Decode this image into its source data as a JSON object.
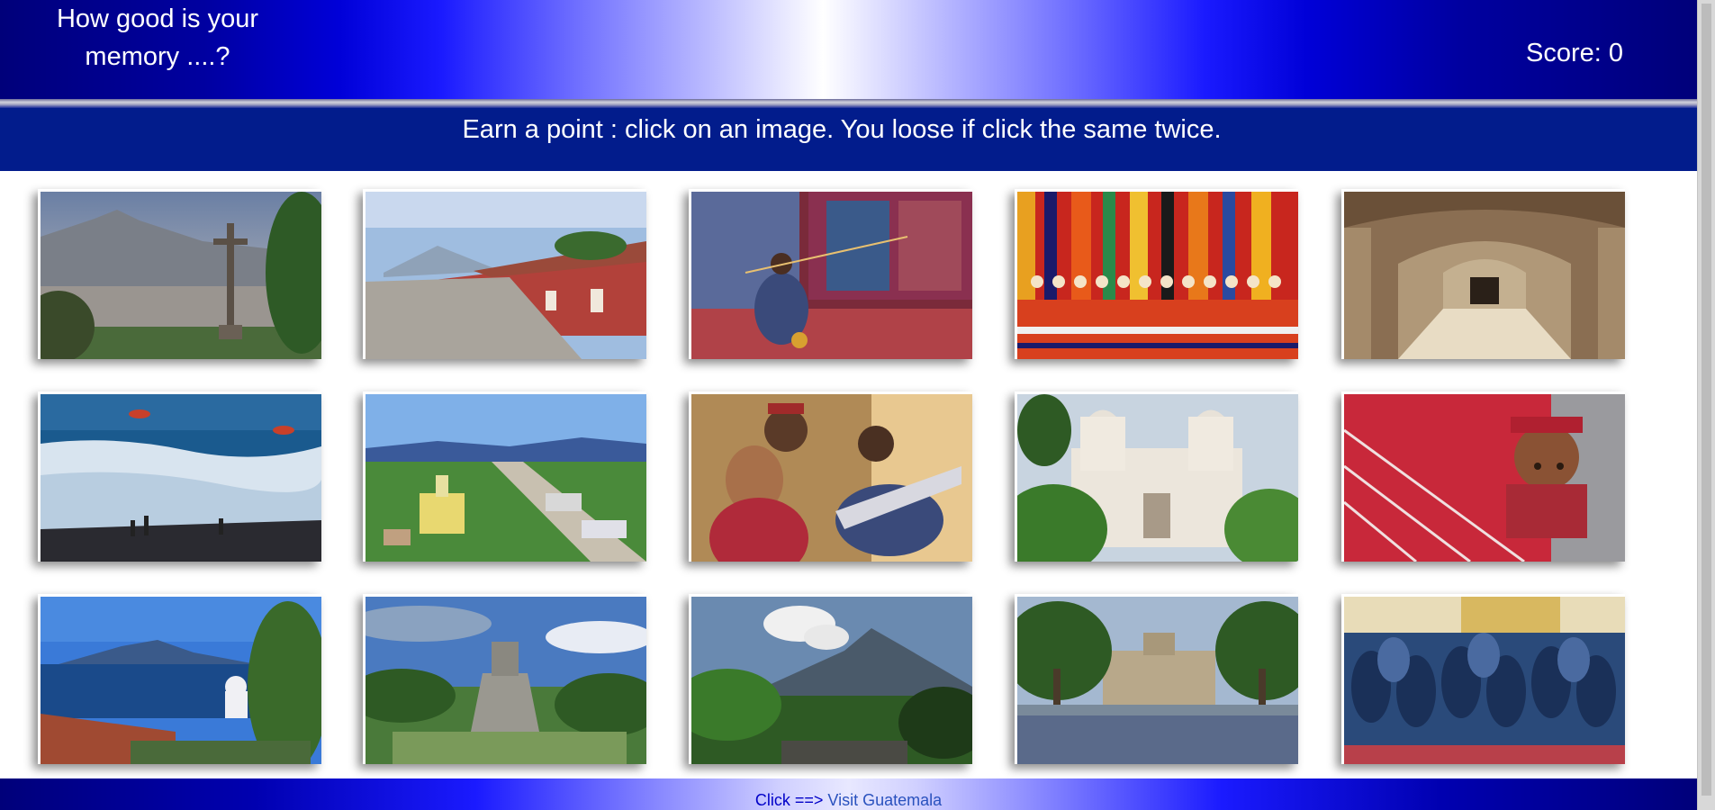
{
  "header": {
    "title": "How good is your memory ....?",
    "score_label": "Score: 0"
  },
  "instructions": "Earn a point : click on an image. You loose if click the same twice.",
  "gallery": {
    "images": [
      "volcano-cross-viewpoint-image",
      "colonial-street-volcano-image",
      "weaver-at-loom-image",
      "textiles-and-dolls-image",
      "arched-corridor-image",
      "beach-kites-image",
      "town-aerial-view-image",
      "mother-and-daughter-image",
      "white-church-facade-image",
      "child-in-red-wrap-image",
      "lake-volcano-view-image",
      "mayan-pyramid-image",
      "smoking-volcano-image",
      "palace-plaza-image",
      "church-congregation-image"
    ]
  },
  "footer": {
    "prefix": "Click ==>",
    "link_text": "Visit Guatemala"
  },
  "colors": {
    "banner_dark": "#00007a",
    "instructions_bg": "#021c8c",
    "text_white": "#ffffff",
    "footer_link": "#2a52be"
  }
}
